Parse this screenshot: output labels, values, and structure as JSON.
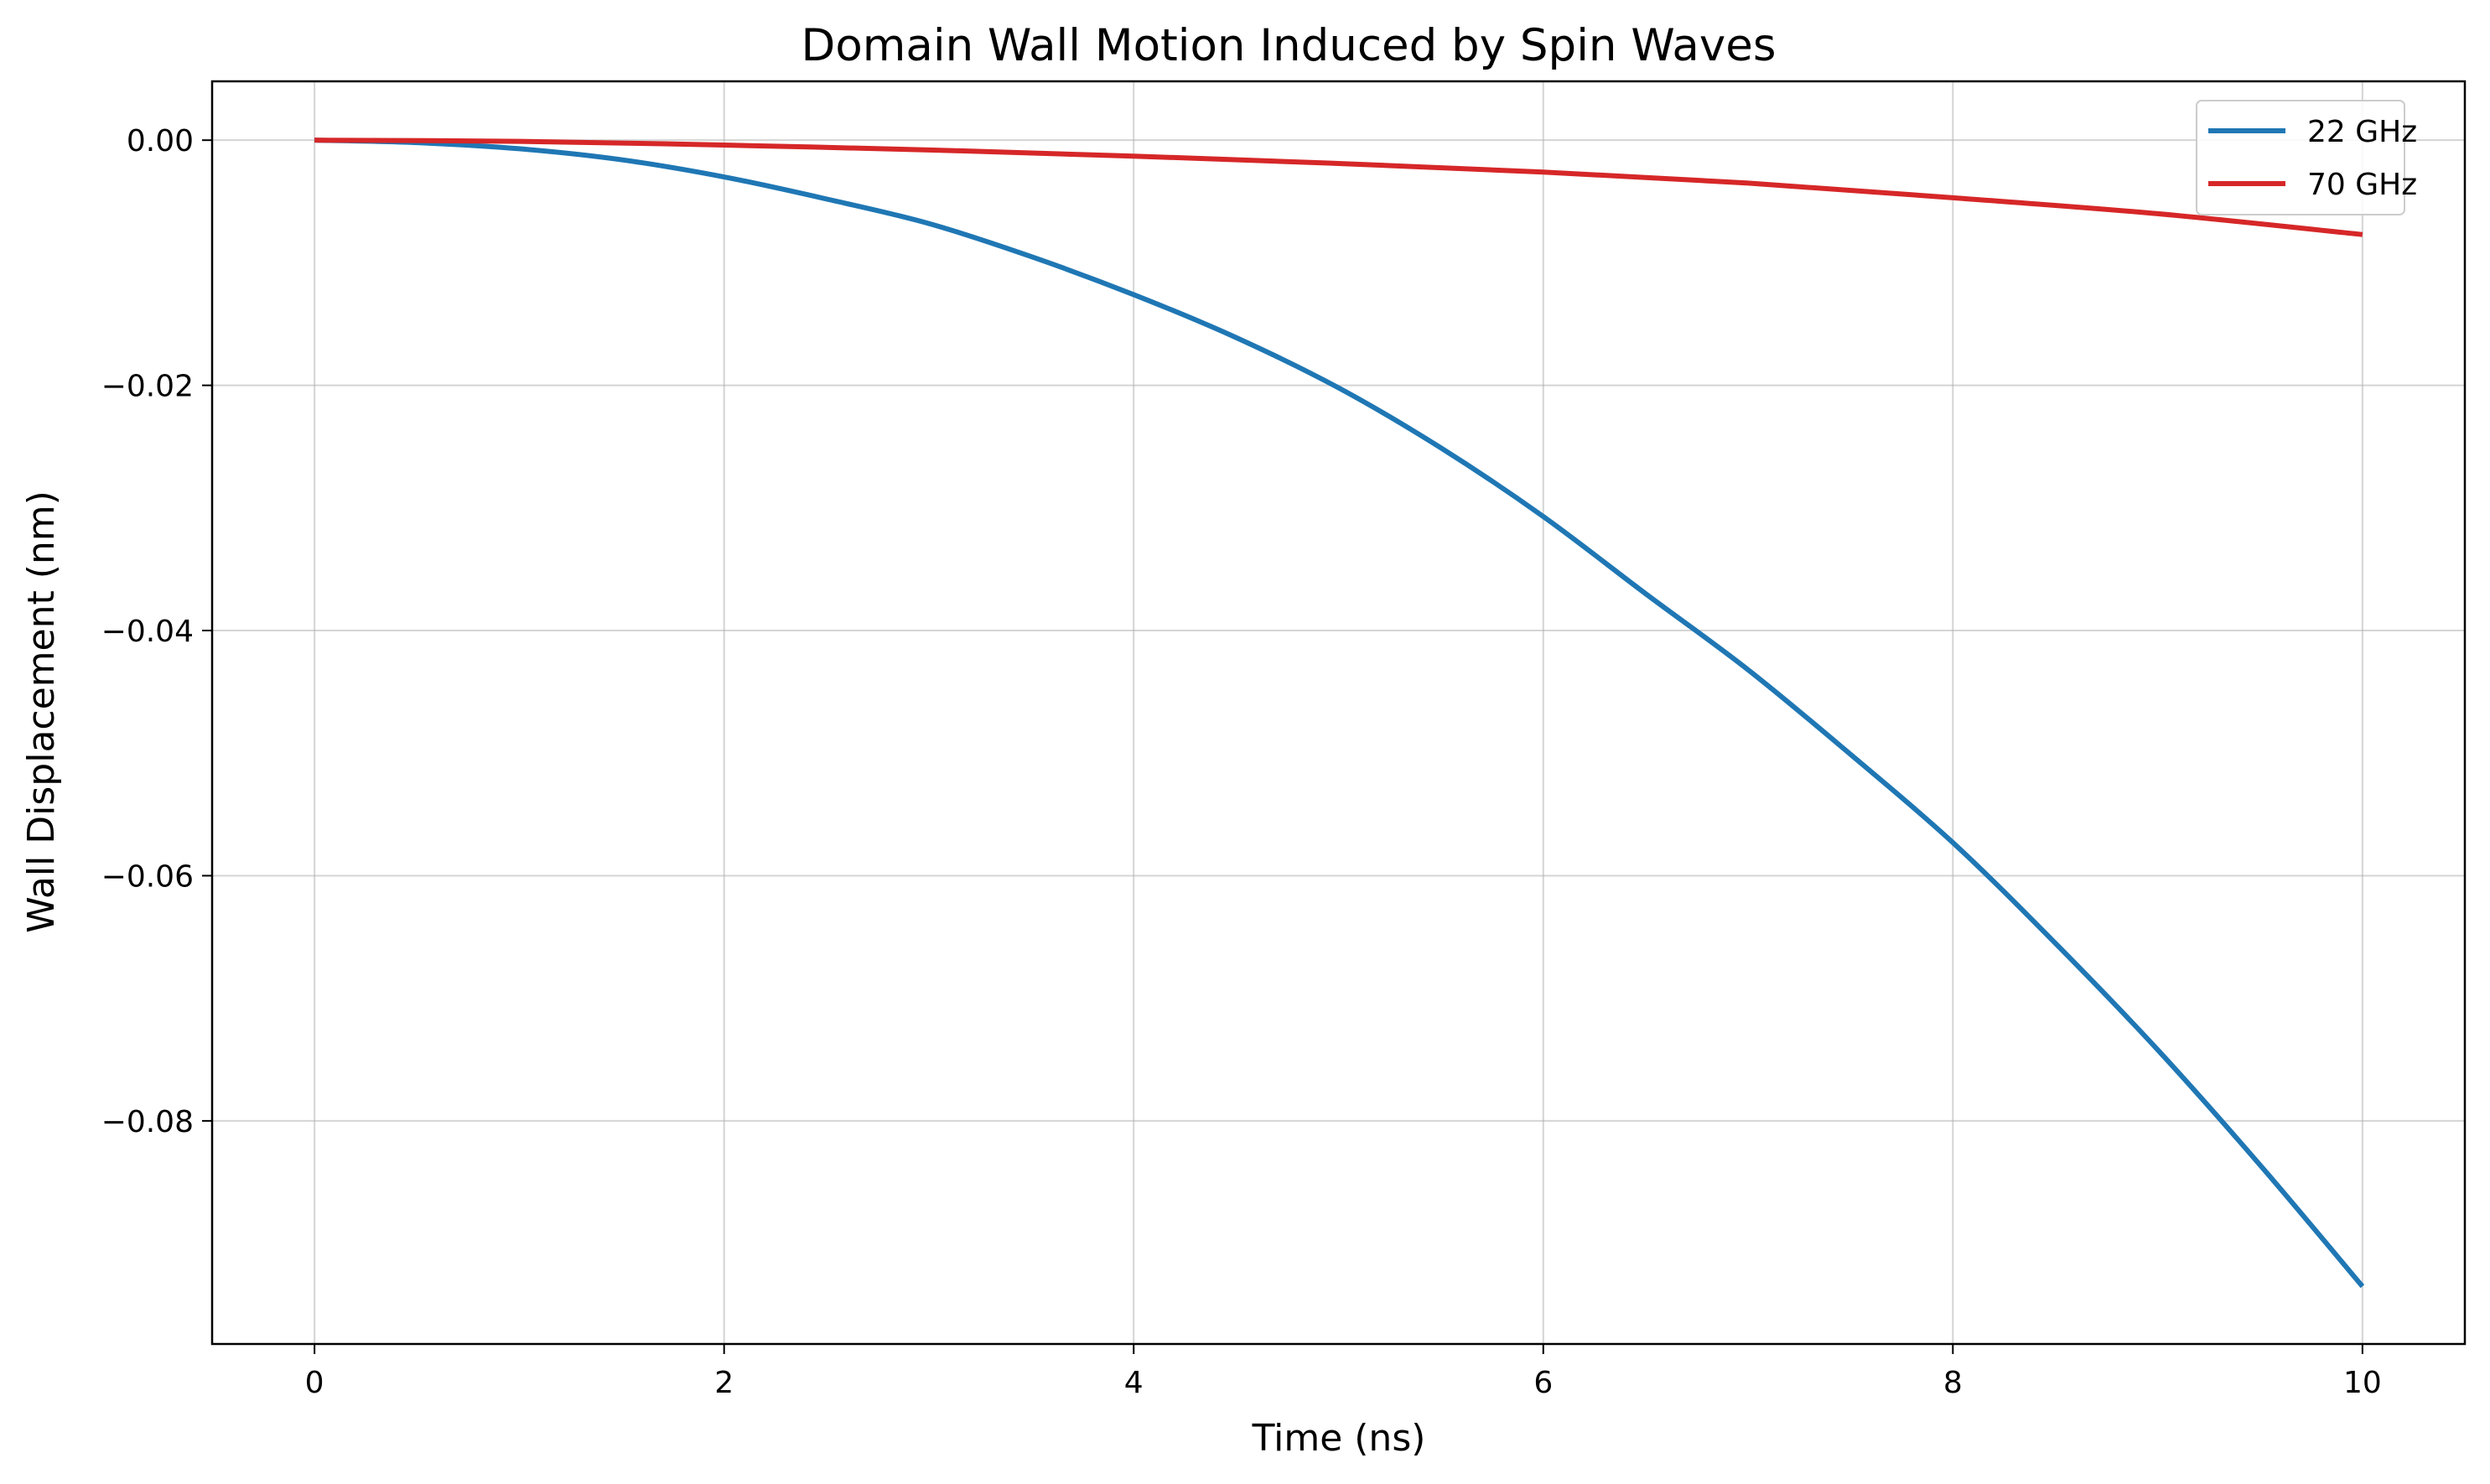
{
  "chart_data": {
    "type": "line",
    "title": "Domain Wall Motion Induced by Spin Waves",
    "xlabel": "Time (ns)",
    "ylabel": "Wall Displacement (nm)",
    "xlim": [
      -0.5,
      10.5
    ],
    "ylim": [
      -0.0982,
      0.0048
    ],
    "xticks": [
      0,
      2,
      4,
      6,
      8,
      10
    ],
    "xtick_labels": [
      "0",
      "2",
      "4",
      "6",
      "8",
      "10"
    ],
    "yticks": [
      0.0,
      -0.02,
      -0.04,
      -0.06,
      -0.08
    ],
    "ytick_labels": [
      "0.00",
      "−0.02",
      "−0.04",
      "−0.06",
      "−0.08"
    ],
    "grid": true,
    "legend_position": "top-right",
    "series": [
      {
        "name": "22 GHz",
        "color": "#1f77b4",
        "x": [
          0,
          0.5,
          1,
          1.5,
          2,
          2.5,
          3,
          3.5,
          4,
          4.5,
          5,
          5.5,
          6,
          6.5,
          7,
          7.5,
          8,
          8.5,
          9,
          9.5,
          10
        ],
        "y": [
          0.0,
          -0.0002,
          -0.0007,
          -0.0016,
          -0.003,
          -0.0048,
          -0.0068,
          -0.0095,
          -0.0126,
          -0.0161,
          -0.0202,
          -0.0251,
          -0.0307,
          -0.037,
          -0.0432,
          -0.0501,
          -0.0573,
          -0.0655,
          -0.0742,
          -0.0836,
          -0.0935
        ]
      },
      {
        "name": "70 GHz",
        "color": "#d62728",
        "x": [
          0,
          1,
          2,
          3,
          4,
          5,
          6,
          7,
          8,
          9,
          10
        ],
        "y": [
          0.0,
          -0.0001,
          -0.0004,
          -0.0008,
          -0.0013,
          -0.0019,
          -0.0026,
          -0.0035,
          -0.0047,
          -0.006,
          -0.0077
        ]
      }
    ]
  }
}
